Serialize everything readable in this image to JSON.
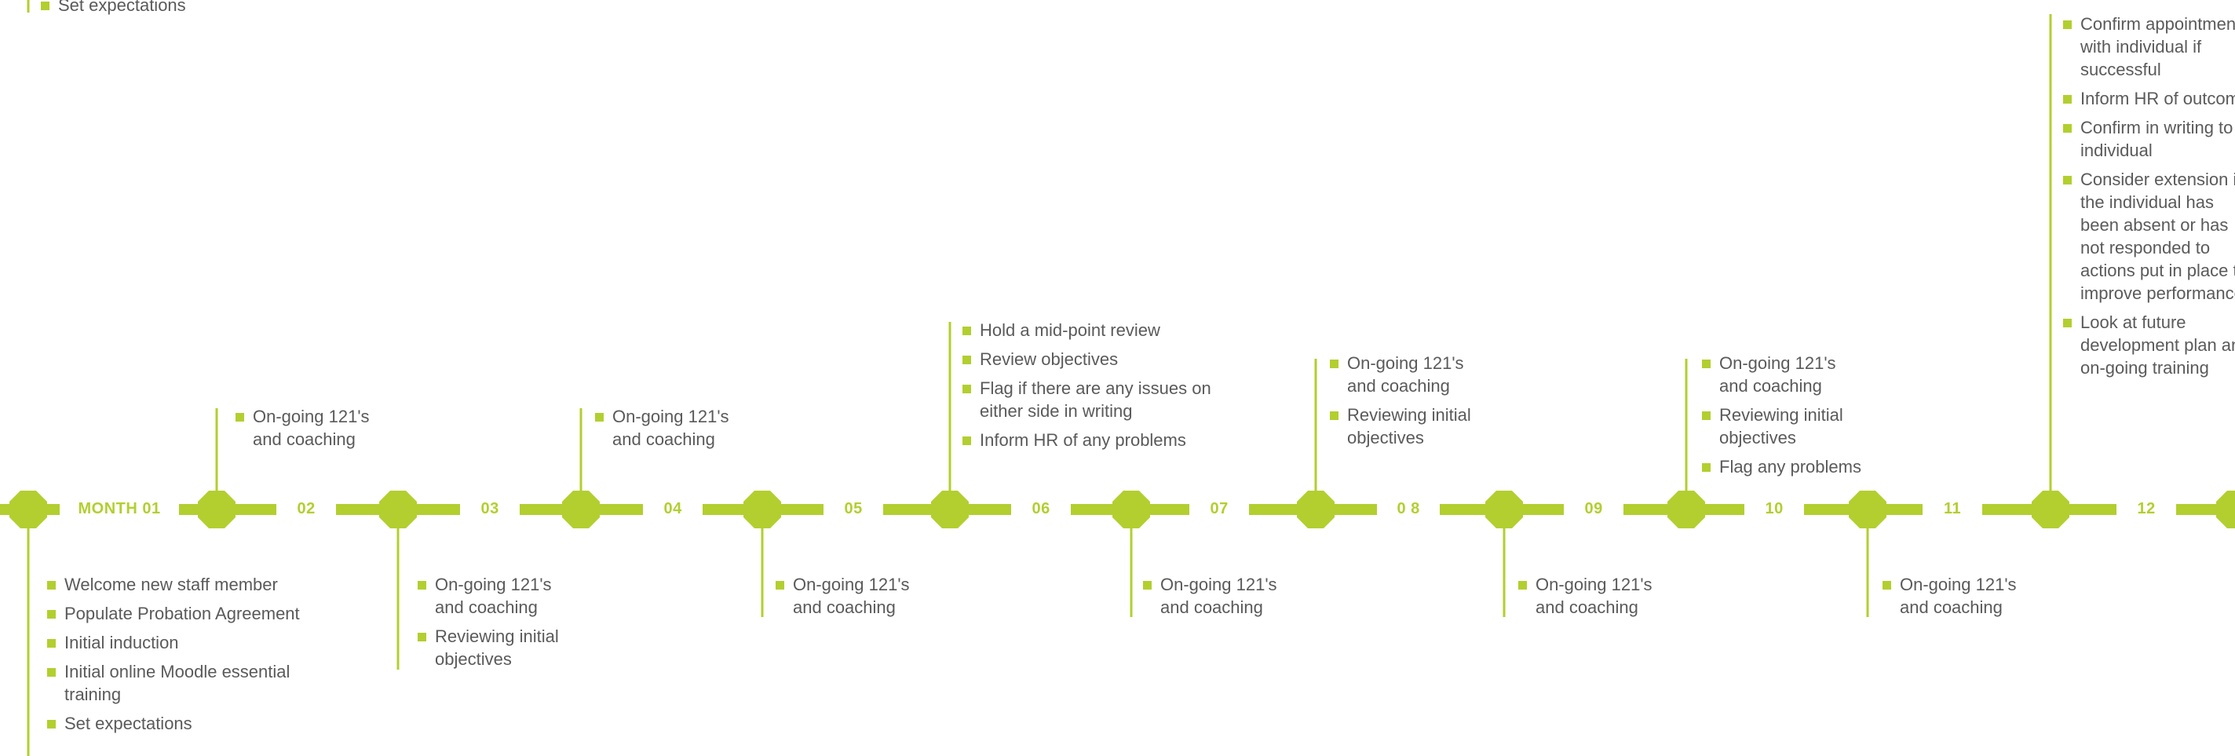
{
  "colors": {
    "accent": "#b2cf2f",
    "text": "#5a5a5a",
    "background": "#ffffff"
  },
  "timeline": {
    "labels": [
      "MONTH 01",
      "02",
      "03",
      "04",
      "05",
      "06",
      "07",
      "0 8",
      "09",
      "10",
      "11",
      "12"
    ]
  },
  "notes": {
    "top_clipped": [
      "Set expectations"
    ],
    "m01_below": [
      "Welcome new staff member",
      "Populate Probation Agreement",
      "Initial induction",
      "Initial online Moodle essential training",
      "Set expectations"
    ],
    "m02_above": [
      "On-going 121's and coaching"
    ],
    "m03_below": [
      "On-going 121's and coaching",
      "Reviewing initial objectives"
    ],
    "m04_above": [
      "On-going 121's and coaching"
    ],
    "m05_below": [
      "On-going 121's and coaching"
    ],
    "m06_above": [
      "Hold a mid-point review",
      "Review objectives",
      "Flag if there are any issues on either side  in writing",
      "Inform HR of any problems"
    ],
    "m07_below": [
      "On-going 121's and coaching"
    ],
    "m08_above": [
      "On-going 121's and coaching",
      "Reviewing initial objectives"
    ],
    "m09_below": [
      "On-going 121's and coaching"
    ],
    "m10_above": [
      "On-going 121's and coaching",
      "Reviewing initial objectives",
      "Flag any problems"
    ],
    "m11_below": [
      "On-going 121's and coaching"
    ],
    "m12_above": [
      "Confirm appointment with individual if successful",
      "Inform HR of outcome",
      "Confirm in writing  to individual",
      "Consider extension if  the individual has been absent or has not responded to actions put in place to improve performance.",
      "Look at future development plan and on-going training"
    ]
  }
}
